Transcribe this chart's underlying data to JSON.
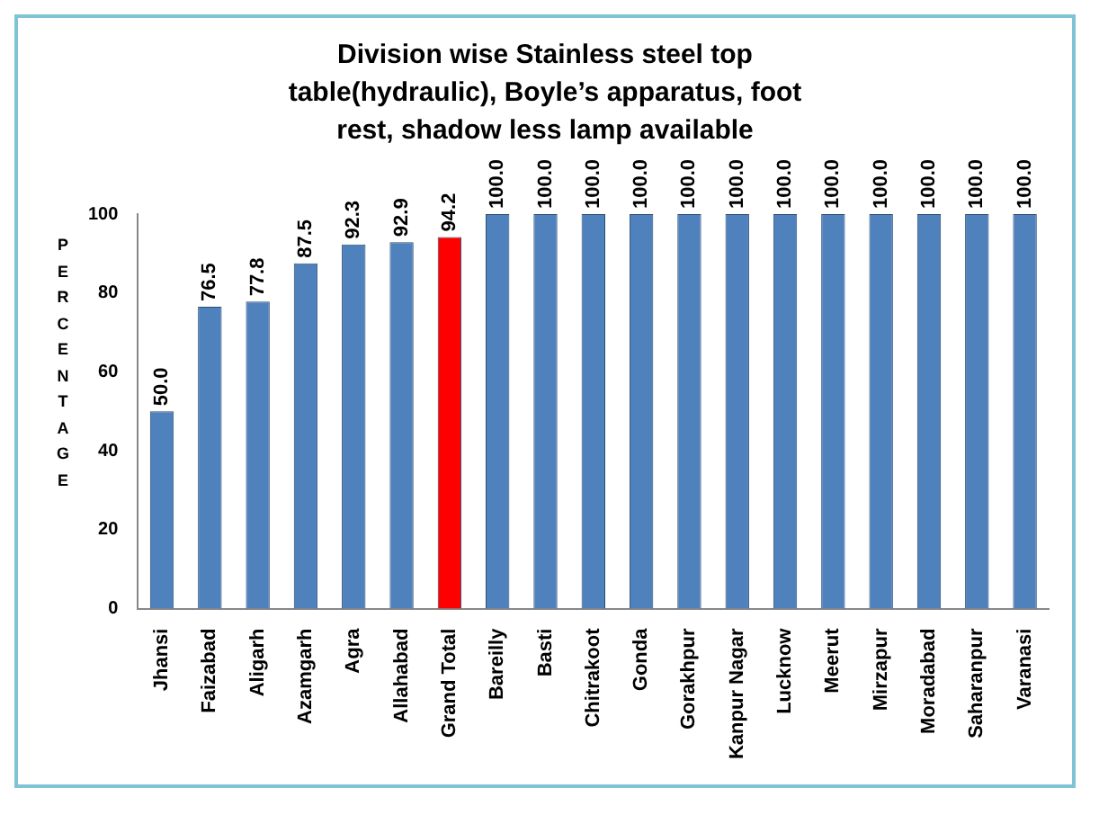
{
  "chart_data": {
    "type": "bar",
    "title": "Division wise Stainless steel top table(hydraulic),  Boyle’s apparatus, foot rest, shadow less lamp available",
    "ylabel": "PERCENTAGE",
    "categories": [
      "Jhansi",
      "Faizabad",
      "Aligarh",
      "Azamgarh",
      "Agra",
      "Allahabad",
      "Grand Total",
      "Bareilly",
      "Basti",
      "Chitrakoot",
      "Gonda",
      "Gorakhpur",
      "Kanpur Nagar",
      "Lucknow",
      "Meerut",
      "Mirzapur",
      "Moradabad",
      "Saharanpur",
      "Varanasi"
    ],
    "values": [
      50.0,
      76.5,
      77.8,
      87.5,
      92.3,
      92.9,
      94.2,
      100,
      100,
      100,
      100,
      100,
      100,
      100,
      100,
      100,
      100,
      100,
      100
    ],
    "value_labels": [
      "50.0",
      "76.5",
      "77.8",
      "87.5",
      "92.3",
      "92.9",
      "94.2",
      "100.0",
      "100.0",
      "100.0",
      "100.0",
      "100.0",
      "100.0",
      "100.0",
      "100.0",
      "100.0",
      "100.0",
      "100.0",
      "100.0"
    ],
    "colors": [
      "#4f81bd",
      "#4f81bd",
      "#4f81bd",
      "#4f81bd",
      "#4f81bd",
      "#4f81bd",
      "#ff0000",
      "#4f81bd",
      "#4f81bd",
      "#4f81bd",
      "#4f81bd",
      "#4f81bd",
      "#4f81bd",
      "#4f81bd",
      "#4f81bd",
      "#4f81bd",
      "#4f81bd",
      "#4f81bd",
      "#4f81bd"
    ],
    "ylim": [
      0,
      100
    ],
    "yticks": [
      0,
      20,
      40,
      60,
      80,
      100
    ],
    "grid": false,
    "legend": false
  }
}
